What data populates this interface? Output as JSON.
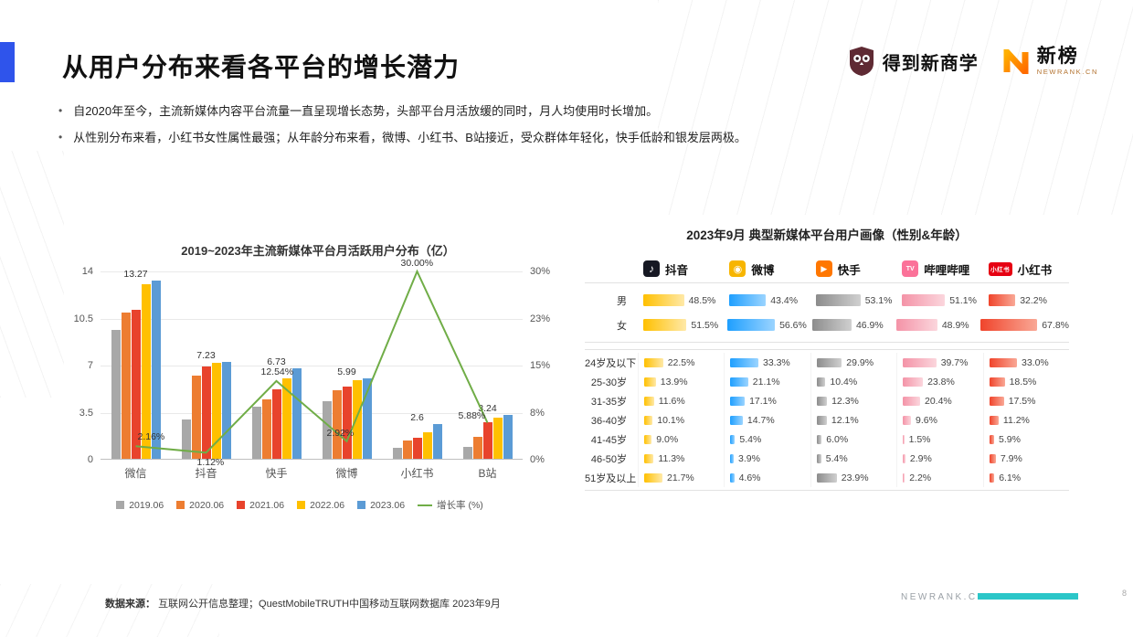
{
  "slide": {
    "title": "从用户分布来看各平台的增长潜力",
    "bullets": [
      "自2020年至今，主流新媒体内容平台流量一直呈现增长态势，头部平台月活放缓的同时，月人均使用时长增加。",
      "从性别分布来看，小红书女性属性最强；从年龄分布来看，微博、小红书、B站接近，受众群体年轻化，快手低龄和银发层两极。"
    ],
    "source_label": "数据来源：",
    "source_text": "互联网公开信息整理；QuestMobileTRUTH中国移动互联网数据库 2023年9月",
    "footer_brand": "NEWRANK.CN",
    "page_number": "8"
  },
  "logos": {
    "dedao_text": "得到新商学",
    "newrank_text": "新榜",
    "newrank_sub": "NEWRANK.CN"
  },
  "colors": {
    "accent_blue": "#2F54EB",
    "footer_teal": "#2BC6C8",
    "growth_line_green": "#70AD47"
  },
  "chart_data": [
    {
      "type": "bar",
      "title": "2019~2023年主流新媒体平台月活跃用户分布（亿）",
      "categories": [
        "微信",
        "抖音",
        "快手",
        "微博",
        "小红书",
        "B站"
      ],
      "series": [
        {
          "name": "2019.06",
          "color": "#A8A8A8",
          "values": [
            9.6,
            2.9,
            3.9,
            4.3,
            0.85,
            0.9
          ]
        },
        {
          "name": "2020.06",
          "color": "#ED7D31",
          "values": [
            10.85,
            6.2,
            4.4,
            5.1,
            1.35,
            1.65
          ]
        },
        {
          "name": "2021.06",
          "color": "#E8432C",
          "values": [
            11.1,
            6.9,
            5.2,
            5.35,
            1.6,
            2.7
          ]
        },
        {
          "name": "2022.06",
          "color": "#FFC000",
          "values": [
            12.99,
            7.15,
            5.98,
            5.82,
            2.0,
            3.06
          ]
        },
        {
          "name": "2023.06",
          "color": "#5B9BD5",
          "values": [
            13.27,
            7.23,
            6.73,
            5.99,
            2.6,
            3.24
          ]
        }
      ],
      "line_series": {
        "name": "增长率 (%)",
        "color": "#70AD47",
        "values": [
          2.16,
          1.12,
          12.54,
          2.92,
          30.0,
          5.88
        ]
      },
      "bar_value_labels": [
        "13.27",
        "7.23",
        "6.73",
        "5.99",
        "2.6",
        "3.24"
      ],
      "line_value_labels": [
        "2.16%",
        "1.12%",
        "12.54%",
        "2.92%",
        "30.00%",
        "5.88%"
      ],
      "y_left_ticks": [
        "14",
        "10.5",
        "7",
        "3.5",
        "0"
      ],
      "y_right_ticks": [
        "30%",
        "23%",
        "15%",
        "8%",
        "0%"
      ],
      "ylim_left": [
        0,
        14
      ],
      "ylim_right": [
        0,
        30
      ],
      "grid": true,
      "legend_position": "bottom"
    },
    {
      "type": "table",
      "title": "2023年9月 典型新媒体平台用户画像（性别&年龄）",
      "platforms": [
        {
          "name": "抖音",
          "icon": "douyin-icon",
          "icon_bg": "#161823",
          "glyph": "♪",
          "bar_colors": [
            "#FFC000",
            "#FFE9A8"
          ]
        },
        {
          "name": "微博",
          "icon": "weibo-icon",
          "icon_bg": "#F7B500",
          "glyph": "◉",
          "bar_colors": [
            "#1E9FFF",
            "#9BD4FF"
          ]
        },
        {
          "name": "快手",
          "icon": "kuaishou-icon",
          "icon_bg": "#FF7700",
          "glyph": "▶",
          "bar_colors": [
            "#8C8C8C",
            "#D0D0D0"
          ]
        },
        {
          "name": "哔哩哔哩",
          "icon": "bilibili-icon",
          "icon_bg": "#FB7299",
          "glyph": "TV",
          "bar_colors": [
            "#F493A7",
            "#FBD6DD"
          ]
        },
        {
          "name": "小红书",
          "icon": "xiaohongshu-icon",
          "icon_bg": "#E60012",
          "glyph": "小红书",
          "bar_colors": [
            "#F0442B",
            "#F9A896"
          ]
        }
      ],
      "gender_rows": [
        {
          "label": "男",
          "values": [
            48.5,
            43.4,
            53.1,
            51.1,
            32.2
          ]
        },
        {
          "label": "女",
          "values": [
            51.5,
            56.6,
            46.9,
            48.9,
            67.8
          ]
        }
      ],
      "age_rows": [
        {
          "label": "24岁及以下",
          "values": [
            22.5,
            33.3,
            29.9,
            39.7,
            33.0
          ]
        },
        {
          "label": "25-30岁",
          "values": [
            13.9,
            21.1,
            10.4,
            23.8,
            18.5
          ]
        },
        {
          "label": "31-35岁",
          "values": [
            11.6,
            17.1,
            12.3,
            20.4,
            17.5
          ]
        },
        {
          "label": "36-40岁",
          "values": [
            10.1,
            14.7,
            12.1,
            9.6,
            11.2
          ]
        },
        {
          "label": "41-45岁",
          "values": [
            9.0,
            5.4,
            6.0,
            1.5,
            5.9
          ]
        },
        {
          "label": "46-50岁",
          "values": [
            11.3,
            3.9,
            5.4,
            2.9,
            7.9
          ]
        },
        {
          "label": "51岁及以上",
          "values": [
            21.7,
            4.6,
            23.9,
            2.2,
            6.1
          ]
        }
      ]
    }
  ]
}
